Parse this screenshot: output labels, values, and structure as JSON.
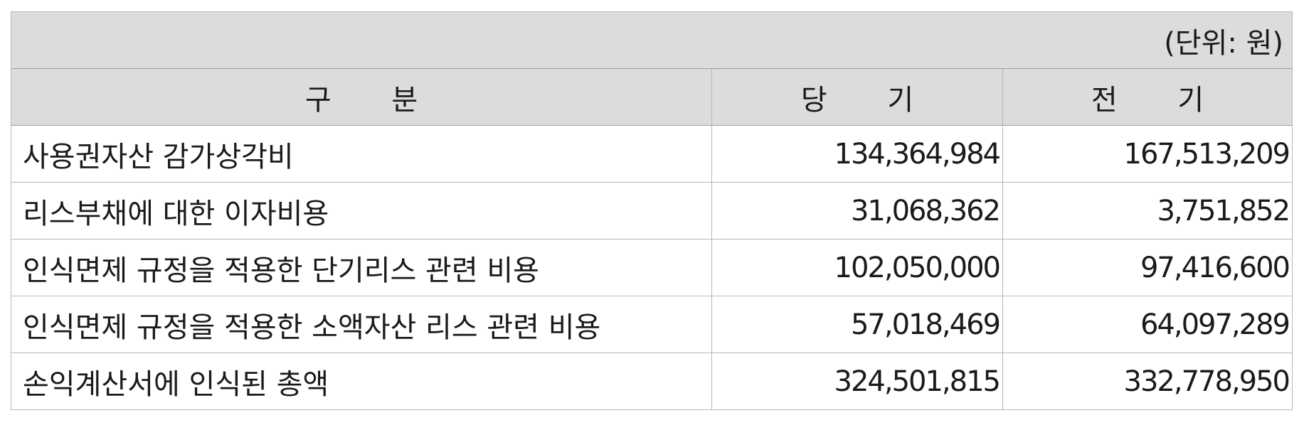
{
  "table": {
    "unit_note": "(단위: 원)",
    "headers": [
      "구 분",
      "당 기",
      "전 기"
    ],
    "rows": [
      {
        "label": "사용권자산 감가상각비",
        "current": "134,364,984",
        "prior": "167,513,209"
      },
      {
        "label": "리스부채에 대한 이자비용",
        "current": "31,068,362",
        "prior": "3,751,852"
      },
      {
        "label": "인식면제 규정을 적용한 단기리스 관련 비용",
        "current": "102,050,000",
        "prior": "97,416,600"
      },
      {
        "label": "인식면제 규정을 적용한 소액자산 리스 관련 비용",
        "current": "57,018,469",
        "prior": "64,097,289"
      },
      {
        "label": "손익계산서에 인식된 총액",
        "current": "324,501,815",
        "prior": "332,778,950"
      }
    ]
  }
}
